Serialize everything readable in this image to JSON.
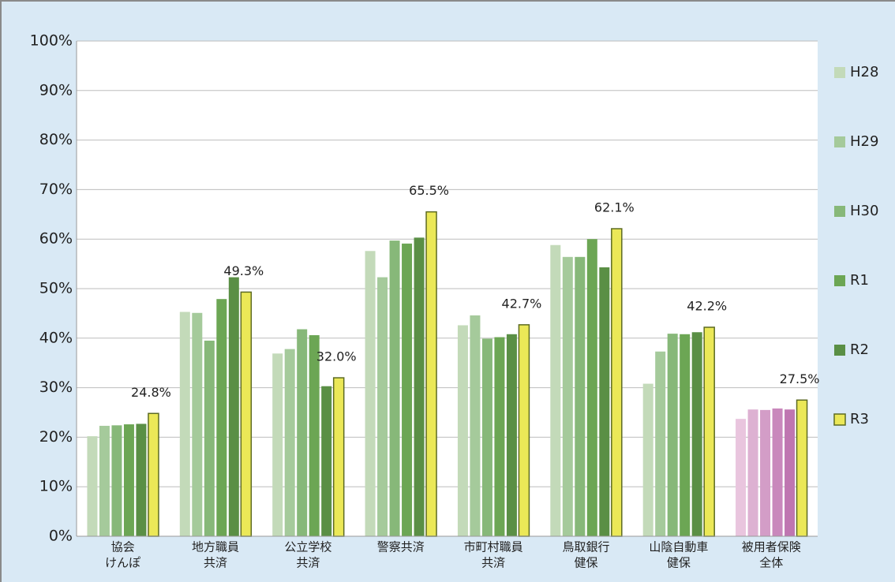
{
  "chart_data": {
    "type": "bar",
    "categories": [
      [
        "協会",
        "けんぽ"
      ],
      [
        "地方職員",
        "共済"
      ],
      [
        "公立学校",
        "共済"
      ],
      [
        "警察共済"
      ],
      [
        "市町村職員",
        "共済"
      ],
      [
        "鳥取銀行",
        "健保"
      ],
      [
        "山陰自動車",
        "健保"
      ],
      [
        "被用者保険",
        "全体"
      ]
    ],
    "series": [
      {
        "name": "H28",
        "color": "#c3dab9",
        "colors": [
          "#c3dab9",
          "#c3dab9",
          "#c3dab9",
          "#c3dab9",
          "#c3dab9",
          "#c3dab9",
          "#c3dab9",
          "#e9c5de"
        ],
        "values": [
          20.2,
          45.3,
          36.9,
          57.6,
          42.6,
          58.8,
          30.8,
          23.7
        ]
      },
      {
        "name": "H29",
        "color": "#a5ca9b",
        "colors": [
          "#a5ca9b",
          "#a5ca9b",
          "#a5ca9b",
          "#a5ca9b",
          "#a5ca9b",
          "#a5ca9b",
          "#a5ca9b",
          "#ddb1d2"
        ],
        "values": [
          22.3,
          45.1,
          37.8,
          52.3,
          44.6,
          56.4,
          37.3,
          25.6
        ]
      },
      {
        "name": "H30",
        "color": "#87b879",
        "colors": [
          "#87b879",
          "#87b879",
          "#87b879",
          "#87b879",
          "#87b879",
          "#87b879",
          "#87b879",
          "#d39dc7"
        ],
        "values": [
          22.4,
          39.5,
          41.8,
          59.7,
          39.9,
          56.4,
          40.9,
          25.5
        ]
      },
      {
        "name": "R1",
        "color": "#6ca654",
        "colors": [
          "#6ca654",
          "#6ca654",
          "#6ca654",
          "#6ca654",
          "#6ca654",
          "#6ca654",
          "#6ca654",
          "#c988bc"
        ],
        "values": [
          22.6,
          47.9,
          40.6,
          59.1,
          40.2,
          60.0,
          40.8,
          25.8
        ]
      },
      {
        "name": "R2",
        "color": "#5a8f45",
        "colors": [
          "#5a8f45",
          "#5a8f45",
          "#5a8f45",
          "#5a8f45",
          "#5a8f45",
          "#5a8f45",
          "#5a8f45",
          "#bf76b1"
        ],
        "values": [
          22.7,
          52.3,
          30.3,
          60.3,
          40.8,
          54.3,
          41.2,
          25.6
        ]
      },
      {
        "name": "R3",
        "color": "#ebe857",
        "colors": [
          "#ebe857",
          "#ebe857",
          "#ebe857",
          "#ebe857",
          "#ebe857",
          "#ebe857",
          "#ebe857",
          "#ebe857"
        ],
        "values": [
          24.8,
          49.3,
          32.0,
          65.5,
          42.7,
          62.1,
          42.2,
          27.5
        ],
        "value_labels": [
          "24.8%",
          "49.3%",
          "32.0%",
          "65.5%",
          "42.7%",
          "62.1%",
          "42.2%",
          "27.5%"
        ]
      }
    ],
    "ylim": [
      0,
      100
    ],
    "yticks": [
      {
        "value": 0,
        "label": "0%"
      },
      {
        "value": 10,
        "label": "10%"
      },
      {
        "value": 20,
        "label": "20%"
      },
      {
        "value": 30,
        "label": "30%"
      },
      {
        "value": 40,
        "label": "40%"
      },
      {
        "value": 50,
        "label": "50%"
      },
      {
        "value": 60,
        "label": "60%"
      },
      {
        "value": 70,
        "label": "70%"
      },
      {
        "value": 80,
        "label": "80%"
      },
      {
        "value": 90,
        "label": "90%"
      },
      {
        "value": 100,
        "label": "100%"
      }
    ],
    "grid": true,
    "legend": "right"
  }
}
